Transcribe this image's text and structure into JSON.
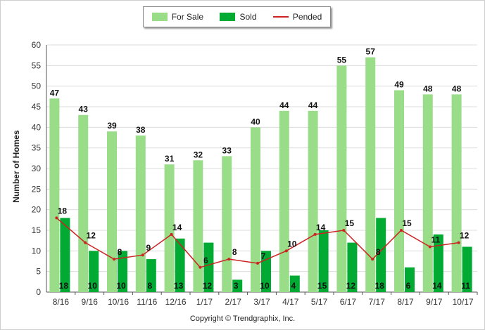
{
  "chart_data": {
    "type": "bar",
    "title": "",
    "xlabel": "",
    "ylabel": "Number of Homes",
    "ylim": [
      0,
      60
    ],
    "yticks": [
      0,
      5,
      10,
      15,
      20,
      25,
      30,
      35,
      40,
      45,
      50,
      55,
      60
    ],
    "grid": true,
    "legend_position": "top-center",
    "categories": [
      "8/16",
      "9/16",
      "10/16",
      "11/16",
      "12/16",
      "1/17",
      "2/17",
      "3/17",
      "4/17",
      "5/17",
      "6/17",
      "7/17",
      "8/17",
      "9/17",
      "10/17"
    ],
    "series": [
      {
        "name": "For Sale",
        "kind": "bar",
        "color": "#99dd88",
        "values": [
          47,
          43,
          39,
          38,
          31,
          32,
          33,
          40,
          44,
          44,
          55,
          57,
          49,
          48,
          48
        ]
      },
      {
        "name": "Sold",
        "kind": "bar",
        "color": "#00aa33",
        "values": [
          18,
          10,
          10,
          8,
          13,
          12,
          3,
          10,
          4,
          15,
          12,
          18,
          6,
          14,
          11
        ]
      },
      {
        "name": "Pended",
        "kind": "line",
        "color": "#cc2222",
        "values": [
          18,
          12,
          8,
          9,
          14,
          6,
          8,
          7,
          10,
          14,
          15,
          8,
          15,
          11,
          12
        ]
      }
    ]
  },
  "copyright": "Copyright © Trendgraphix, Inc."
}
